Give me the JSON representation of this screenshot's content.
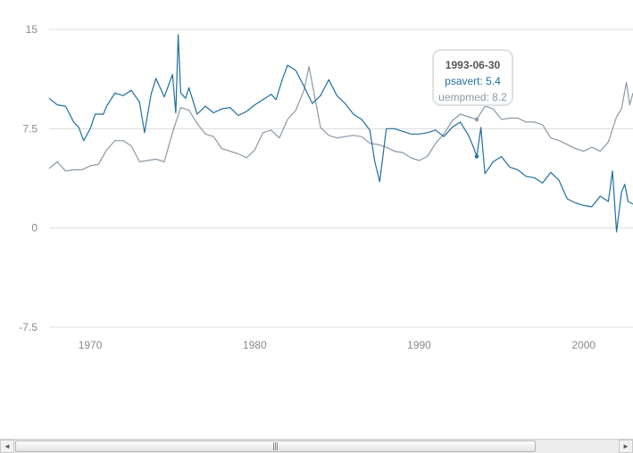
{
  "chart_data": {
    "type": "line",
    "title": "",
    "xlabel": "",
    "ylabel": "",
    "xlim": [
      1967.5,
      2003.0
    ],
    "ylim": [
      -7.5,
      15
    ],
    "y_ticks": [
      {
        "value": 15,
        "label": "15"
      },
      {
        "value": 7.5,
        "label": "7.5"
      },
      {
        "value": 0,
        "label": "0"
      },
      {
        "value": -7.5,
        "label": "-7.5"
      }
    ],
    "x_ticks": [
      {
        "value": 1970,
        "label": "1970"
      },
      {
        "value": 1980,
        "label": "1980"
      },
      {
        "value": 1990,
        "label": "1990"
      },
      {
        "value": 2000,
        "label": "2000"
      }
    ],
    "grid": true,
    "series": [
      {
        "name": "psavert",
        "color": "#1f6f9f",
        "points": [
          [
            1967.5,
            9.8
          ],
          [
            1968.0,
            9.3
          ],
          [
            1968.5,
            9.2
          ],
          [
            1969.0,
            8.0
          ],
          [
            1969.3,
            7.6
          ],
          [
            1969.6,
            6.6
          ],
          [
            1970.0,
            7.5
          ],
          [
            1970.3,
            8.6
          ],
          [
            1970.8,
            8.6
          ],
          [
            1971.0,
            9.2
          ],
          [
            1971.5,
            10.2
          ],
          [
            1972.0,
            10.0
          ],
          [
            1972.5,
            10.4
          ],
          [
            1973.0,
            9.5
          ],
          [
            1973.3,
            7.2
          ],
          [
            1973.7,
            10.1
          ],
          [
            1974.0,
            11.3
          ],
          [
            1974.5,
            9.9
          ],
          [
            1975.0,
            11.6
          ],
          [
            1975.2,
            8.7
          ],
          [
            1975.35,
            14.6
          ],
          [
            1975.5,
            10.2
          ],
          [
            1975.8,
            9.8
          ],
          [
            1976.0,
            10.6
          ],
          [
            1976.5,
            8.6
          ],
          [
            1977.0,
            9.2
          ],
          [
            1977.5,
            8.7
          ],
          [
            1978.0,
            9.0
          ],
          [
            1978.5,
            9.1
          ],
          [
            1979.0,
            8.5
          ],
          [
            1979.5,
            8.8
          ],
          [
            1980.0,
            9.3
          ],
          [
            1980.5,
            9.7
          ],
          [
            1981.0,
            10.1
          ],
          [
            1981.3,
            9.7
          ],
          [
            1981.7,
            11.3
          ],
          [
            1982.0,
            12.3
          ],
          [
            1982.5,
            11.9
          ],
          [
            1983.0,
            10.7
          ],
          [
            1983.5,
            9.4
          ],
          [
            1984.0,
            10.0
          ],
          [
            1984.5,
            11.2
          ],
          [
            1985.0,
            10.0
          ],
          [
            1985.5,
            9.4
          ],
          [
            1986.0,
            8.6
          ],
          [
            1986.5,
            8.2
          ],
          [
            1987.0,
            7.4
          ],
          [
            1987.3,
            5.0
          ],
          [
            1987.6,
            3.5
          ],
          [
            1988.0,
            7.5
          ],
          [
            1988.5,
            7.5
          ],
          [
            1989.0,
            7.3
          ],
          [
            1989.5,
            7.1
          ],
          [
            1990.0,
            7.1
          ],
          [
            1990.5,
            7.2
          ],
          [
            1991.0,
            7.4
          ],
          [
            1991.5,
            6.9
          ],
          [
            1992.0,
            7.6
          ],
          [
            1992.5,
            8.0
          ],
          [
            1993.0,
            7.0
          ],
          [
            1993.3,
            6.1
          ],
          [
            1993.5,
            5.4
          ],
          [
            1993.75,
            7.6
          ],
          [
            1994.0,
            4.1
          ],
          [
            1994.5,
            5.0
          ],
          [
            1995.0,
            5.4
          ],
          [
            1995.5,
            4.6
          ],
          [
            1996.0,
            4.4
          ],
          [
            1996.5,
            3.9
          ],
          [
            1997.0,
            3.8
          ],
          [
            1997.5,
            3.4
          ],
          [
            1998.0,
            4.2
          ],
          [
            1998.5,
            3.6
          ],
          [
            1999.0,
            2.2
          ],
          [
            1999.5,
            1.9
          ],
          [
            2000.0,
            1.7
          ],
          [
            2000.5,
            1.6
          ],
          [
            2001.0,
            2.4
          ],
          [
            2001.5,
            2.0
          ],
          [
            2001.75,
            4.3
          ],
          [
            2002.0,
            -0.3
          ],
          [
            2002.3,
            2.7
          ],
          [
            2002.5,
            3.3
          ],
          [
            2002.7,
            2.0
          ],
          [
            2003.0,
            1.8
          ]
        ]
      },
      {
        "name": "uempmed",
        "color": "#8a98a6",
        "points": [
          [
            1967.5,
            4.5
          ],
          [
            1968.0,
            5.0
          ],
          [
            1968.5,
            4.3
          ],
          [
            1969.0,
            4.4
          ],
          [
            1969.5,
            4.4
          ],
          [
            1970.0,
            4.7
          ],
          [
            1970.5,
            4.8
          ],
          [
            1971.0,
            5.9
          ],
          [
            1971.5,
            6.6
          ],
          [
            1972.0,
            6.6
          ],
          [
            1972.5,
            6.2
          ],
          [
            1973.0,
            5.0
          ],
          [
            1973.5,
            5.1
          ],
          [
            1974.0,
            5.2
          ],
          [
            1974.5,
            5.0
          ],
          [
            1975.0,
            7.2
          ],
          [
            1975.5,
            9.1
          ],
          [
            1976.0,
            8.9
          ],
          [
            1976.5,
            7.9
          ],
          [
            1977.0,
            7.1
          ],
          [
            1977.5,
            6.9
          ],
          [
            1978.0,
            6.0
          ],
          [
            1978.5,
            5.8
          ],
          [
            1979.0,
            5.6
          ],
          [
            1979.5,
            5.3
          ],
          [
            1980.0,
            5.9
          ],
          [
            1980.5,
            7.2
          ],
          [
            1981.0,
            7.4
          ],
          [
            1981.5,
            6.8
          ],
          [
            1982.0,
            8.2
          ],
          [
            1982.5,
            8.9
          ],
          [
            1983.0,
            10.4
          ],
          [
            1983.3,
            12.2
          ],
          [
            1983.7,
            9.6
          ],
          [
            1984.0,
            7.6
          ],
          [
            1984.5,
            7.0
          ],
          [
            1985.0,
            6.8
          ],
          [
            1985.5,
            6.9
          ],
          [
            1986.0,
            7.0
          ],
          [
            1986.5,
            6.9
          ],
          [
            1987.0,
            6.4
          ],
          [
            1987.5,
            6.3
          ],
          [
            1988.0,
            6.1
          ],
          [
            1988.5,
            5.8
          ],
          [
            1989.0,
            5.7
          ],
          [
            1989.5,
            5.3
          ],
          [
            1990.0,
            5.1
          ],
          [
            1990.5,
            5.4
          ],
          [
            1991.0,
            6.4
          ],
          [
            1991.5,
            7.1
          ],
          [
            1992.0,
            8.1
          ],
          [
            1992.5,
            8.6
          ],
          [
            1993.0,
            8.4
          ],
          [
            1993.5,
            8.2
          ],
          [
            1994.0,
            9.2
          ],
          [
            1994.5,
            9.0
          ],
          [
            1995.0,
            8.2
          ],
          [
            1995.5,
            8.3
          ],
          [
            1996.0,
            8.3
          ],
          [
            1996.5,
            8.0
          ],
          [
            1997.0,
            8.0
          ],
          [
            1997.5,
            7.8
          ],
          [
            1998.0,
            6.8
          ],
          [
            1998.5,
            6.6
          ],
          [
            1999.0,
            6.3
          ],
          [
            1999.5,
            6.0
          ],
          [
            2000.0,
            5.8
          ],
          [
            2000.5,
            6.1
          ],
          [
            2001.0,
            5.8
          ],
          [
            2001.5,
            6.5
          ],
          [
            2002.0,
            8.4
          ],
          [
            2002.3,
            9.0
          ],
          [
            2002.6,
            11.0
          ],
          [
            2002.8,
            9.3
          ],
          [
            2003.0,
            10.2
          ]
        ]
      }
    ]
  },
  "tooltip": {
    "date": "1993-06-30",
    "x": 1993.5,
    "rows": [
      {
        "label": "psavert: 5.4",
        "value": 5.4
      },
      {
        "label": "uempmed: 8.2",
        "value": 8.2
      }
    ]
  },
  "scrollbar": {
    "left_arrow": "◄",
    "right_arrow": "►",
    "grip": "|||"
  }
}
